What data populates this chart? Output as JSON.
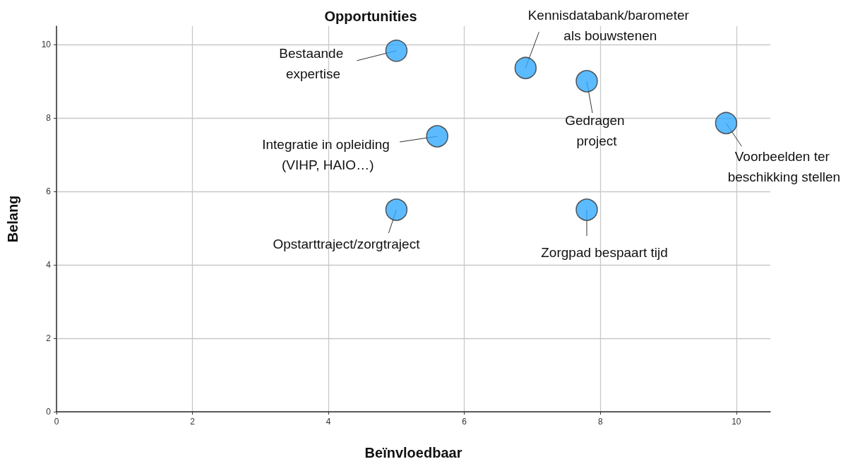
{
  "chart_data": {
    "type": "scatter",
    "title": "Opportunities",
    "xlabel": "Beïnvloedbaar",
    "ylabel": "Belang",
    "x": [
      5.0,
      6.9,
      7.8,
      9.85,
      5.6,
      5.0,
      7.8
    ],
    "values": [
      9.83,
      9.36,
      9.0,
      7.86,
      7.5,
      5.5,
      5.5
    ],
    "color": "#33aaff",
    "marker": "circle",
    "grid": true,
    "xlim": [
      0,
      10.5
    ],
    "xticks": [
      0,
      2,
      4,
      6,
      8,
      10
    ],
    "ylim": [
      0,
      10.5
    ],
    "yticks": [
      0,
      2,
      4,
      6,
      8,
      10
    ],
    "annotations": [
      {
        "text": "Bestaande expertise",
        "x": 5.0,
        "y": 9.83
      },
      {
        "text": "Kennisdatabank/barometer als bouwstenen",
        "x": 6.9,
        "y": 9.36
      },
      {
        "text": "Gedragen project",
        "x": 7.8,
        "y": 9.0
      },
      {
        "text": "Voorbeelden ter beschikking stellen",
        "x": 9.85,
        "y": 7.86
      },
      {
        "text": "Integratie in opleiding (VIHP, HAIO…)",
        "x": 5.6,
        "y": 7.5
      },
      {
        "text": "Opstarttraject/zorgtraject",
        "x": 5.0,
        "y": 5.5
      },
      {
        "text": "Zorgpad bespaart tijd",
        "x": 7.8,
        "y": 5.5
      }
    ]
  }
}
